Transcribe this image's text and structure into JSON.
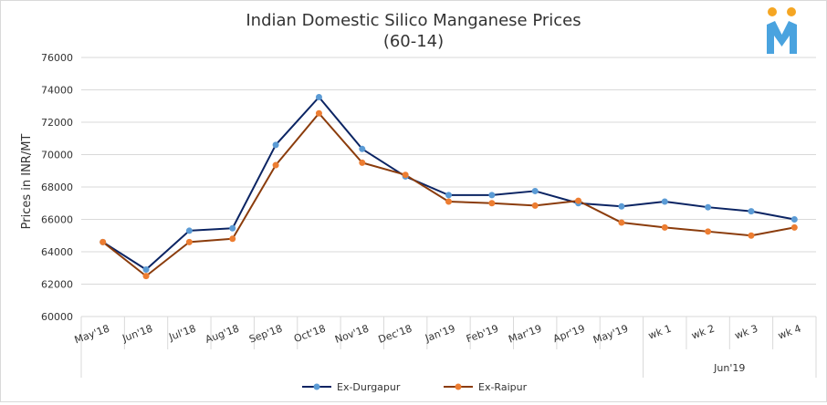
{
  "colors": {
    "series1": "#0b2463",
    "series1_marker": "#5b9bd5",
    "series2": "#8b3c0c",
    "series2_marker": "#ed7d31",
    "logo_bars": "#4aa3df",
    "logo_dots": "#f5a623",
    "grid": "#d9d9d9",
    "text": "#333333"
  },
  "logo": {
    "icon": "m-logo-icon"
  },
  "chart_data": {
    "type": "line",
    "title": "Indian Domestic Silico Manganese Prices",
    "subtitle": "(60-14)",
    "xlabel": "",
    "ylabel": "Prices in INR/MT",
    "ylim": [
      60000,
      76000
    ],
    "yticks": [
      60000,
      62000,
      64000,
      66000,
      68000,
      70000,
      72000,
      74000,
      76000
    ],
    "ytick_labels": [
      "60000",
      "62000",
      "64000",
      "66000",
      "68000",
      "70000",
      "72000",
      "74000",
      "76000"
    ],
    "categories": [
      "May'18",
      "Jun'18",
      "Jul'18",
      "Aug'18",
      "Sep'18",
      "Oct'18",
      "Nov'18",
      "Dec'18",
      "Jan'19",
      "Feb'19",
      "Mar'19",
      "Apr'19",
      "May'19",
      "wk 1",
      "wk 2",
      "wk 3",
      "wk 4"
    ],
    "category_group": {
      "label": "Jun'19",
      "start_index": 13,
      "end_index": 16
    },
    "grid": true,
    "legend_position": "bottom",
    "series": [
      {
        "name": "Ex-Durgapur",
        "values": [
          64600,
          62900,
          65300,
          65450,
          70600,
          73550,
          70350,
          68650,
          67500,
          67500,
          67750,
          67000,
          66800,
          67100,
          66750,
          66500,
          66000
        ]
      },
      {
        "name": "Ex-Raipur",
        "values": [
          64600,
          62500,
          64600,
          64800,
          69350,
          72550,
          69500,
          68750,
          67100,
          67000,
          66850,
          67150,
          65800,
          65500,
          65250,
          65000,
          65500
        ]
      }
    ]
  }
}
